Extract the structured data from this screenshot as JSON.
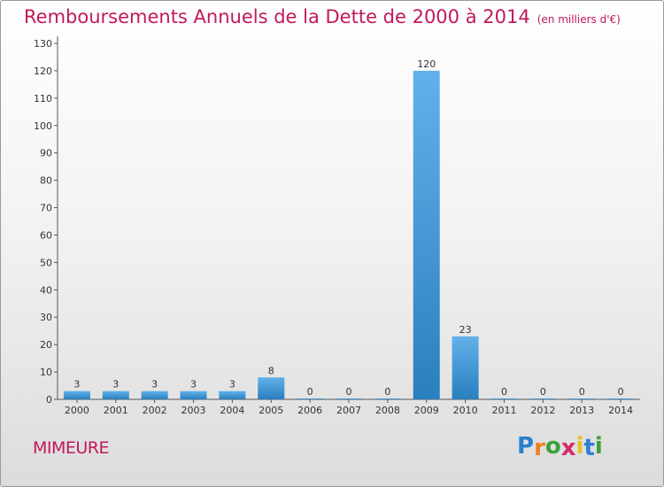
{
  "header": {
    "title": "Remboursements Annuels de la Dette de 2000 à 2014",
    "unit": "(en milliers d'€)"
  },
  "footer": {
    "commune": "MIMEURE",
    "logo_letters": [
      "P",
      "r",
      "o",
      "x",
      "i",
      "t",
      "i"
    ],
    "logo_colors": [
      "#2a7fd4",
      "#e8821e",
      "#3aa13a",
      "#d42a6a",
      "#e8c21e",
      "#2a7fd4",
      "#3aa13a"
    ]
  },
  "colors": {
    "title": "#c1185c",
    "bar_light": "#62b1ea",
    "bar_dark": "#2a7fbf"
  },
  "chart_data": {
    "type": "bar",
    "categories": [
      "2000",
      "2001",
      "2002",
      "2003",
      "2004",
      "2005",
      "2006",
      "2007",
      "2008",
      "2009",
      "2010",
      "2011",
      "2012",
      "2013",
      "2014"
    ],
    "values": [
      3,
      3,
      3,
      3,
      3,
      8,
      0,
      0,
      0,
      120,
      23,
      0,
      0,
      0,
      0
    ],
    "value_labels": [
      "3",
      "3",
      "3",
      "3",
      "3",
      "8",
      "0",
      "0",
      "0",
      "120",
      "23",
      "0",
      "0",
      "0",
      "0"
    ],
    "y_ticks": [
      "0",
      "10",
      "20",
      "30",
      "40",
      "50",
      "60",
      "70",
      "80",
      "90",
      "100",
      "110",
      "120",
      "130"
    ],
    "ylim": [
      0,
      130
    ],
    "grid": false,
    "legend": "none",
    "xlabel": "",
    "ylabel": ""
  }
}
